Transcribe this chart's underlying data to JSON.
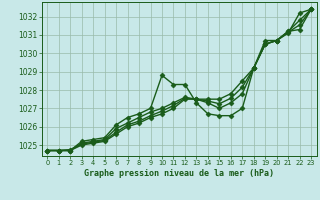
{
  "title": "Graphe pression niveau de la mer (hPa)",
  "bg_color": "#c8e8e8",
  "grid_color": "#99bbaa",
  "line_color": "#1a5c1a",
  "x_values": [
    0,
    1,
    2,
    3,
    4,
    5,
    6,
    7,
    8,
    9,
    10,
    11,
    12,
    13,
    14,
    15,
    16,
    17,
    18,
    19,
    20,
    21,
    22,
    23
  ],
  "ylim": [
    1024.4,
    1032.8
  ],
  "yticks": [
    1025,
    1026,
    1027,
    1028,
    1029,
    1030,
    1031,
    1032
  ],
  "series": [
    [
      1024.7,
      1024.7,
      1024.7,
      1025.2,
      1025.3,
      1025.4,
      1026.1,
      1026.5,
      1026.7,
      1027.0,
      1028.8,
      1028.3,
      1028.3,
      1027.3,
      1026.7,
      1026.6,
      1026.6,
      1027.0,
      1029.2,
      1030.7,
      1030.7,
      1031.1,
      1032.2,
      1032.4
    ],
    [
      1024.7,
      1024.7,
      1024.7,
      1025.1,
      1025.2,
      1025.3,
      1025.9,
      1026.2,
      1026.5,
      1026.8,
      1027.0,
      1027.3,
      1027.6,
      1027.5,
      1027.3,
      1027.0,
      1027.3,
      1027.8,
      1029.2,
      1030.5,
      1030.7,
      1031.2,
      1031.8,
      1032.4
    ],
    [
      1024.7,
      1024.7,
      1024.7,
      1025.0,
      1025.1,
      1025.2,
      1025.6,
      1026.0,
      1026.2,
      1026.5,
      1026.7,
      1027.0,
      1027.5,
      1027.5,
      1027.5,
      1027.5,
      1027.8,
      1028.5,
      1029.2,
      1030.5,
      1030.7,
      1031.2,
      1031.3,
      1032.4
    ],
    [
      1024.7,
      1024.7,
      1024.75,
      1025.05,
      1025.15,
      1025.25,
      1025.7,
      1026.1,
      1026.3,
      1026.6,
      1026.85,
      1027.15,
      1027.55,
      1027.5,
      1027.4,
      1027.25,
      1027.55,
      1028.15,
      1029.2,
      1030.5,
      1030.7,
      1031.15,
      1031.55,
      1032.4
    ]
  ],
  "marker": "D",
  "marker_size": 2.5,
  "line_width": 1.0,
  "xlabel_fontsize": 6.0,
  "ytick_fontsize": 5.5,
  "xtick_fontsize": 4.8
}
